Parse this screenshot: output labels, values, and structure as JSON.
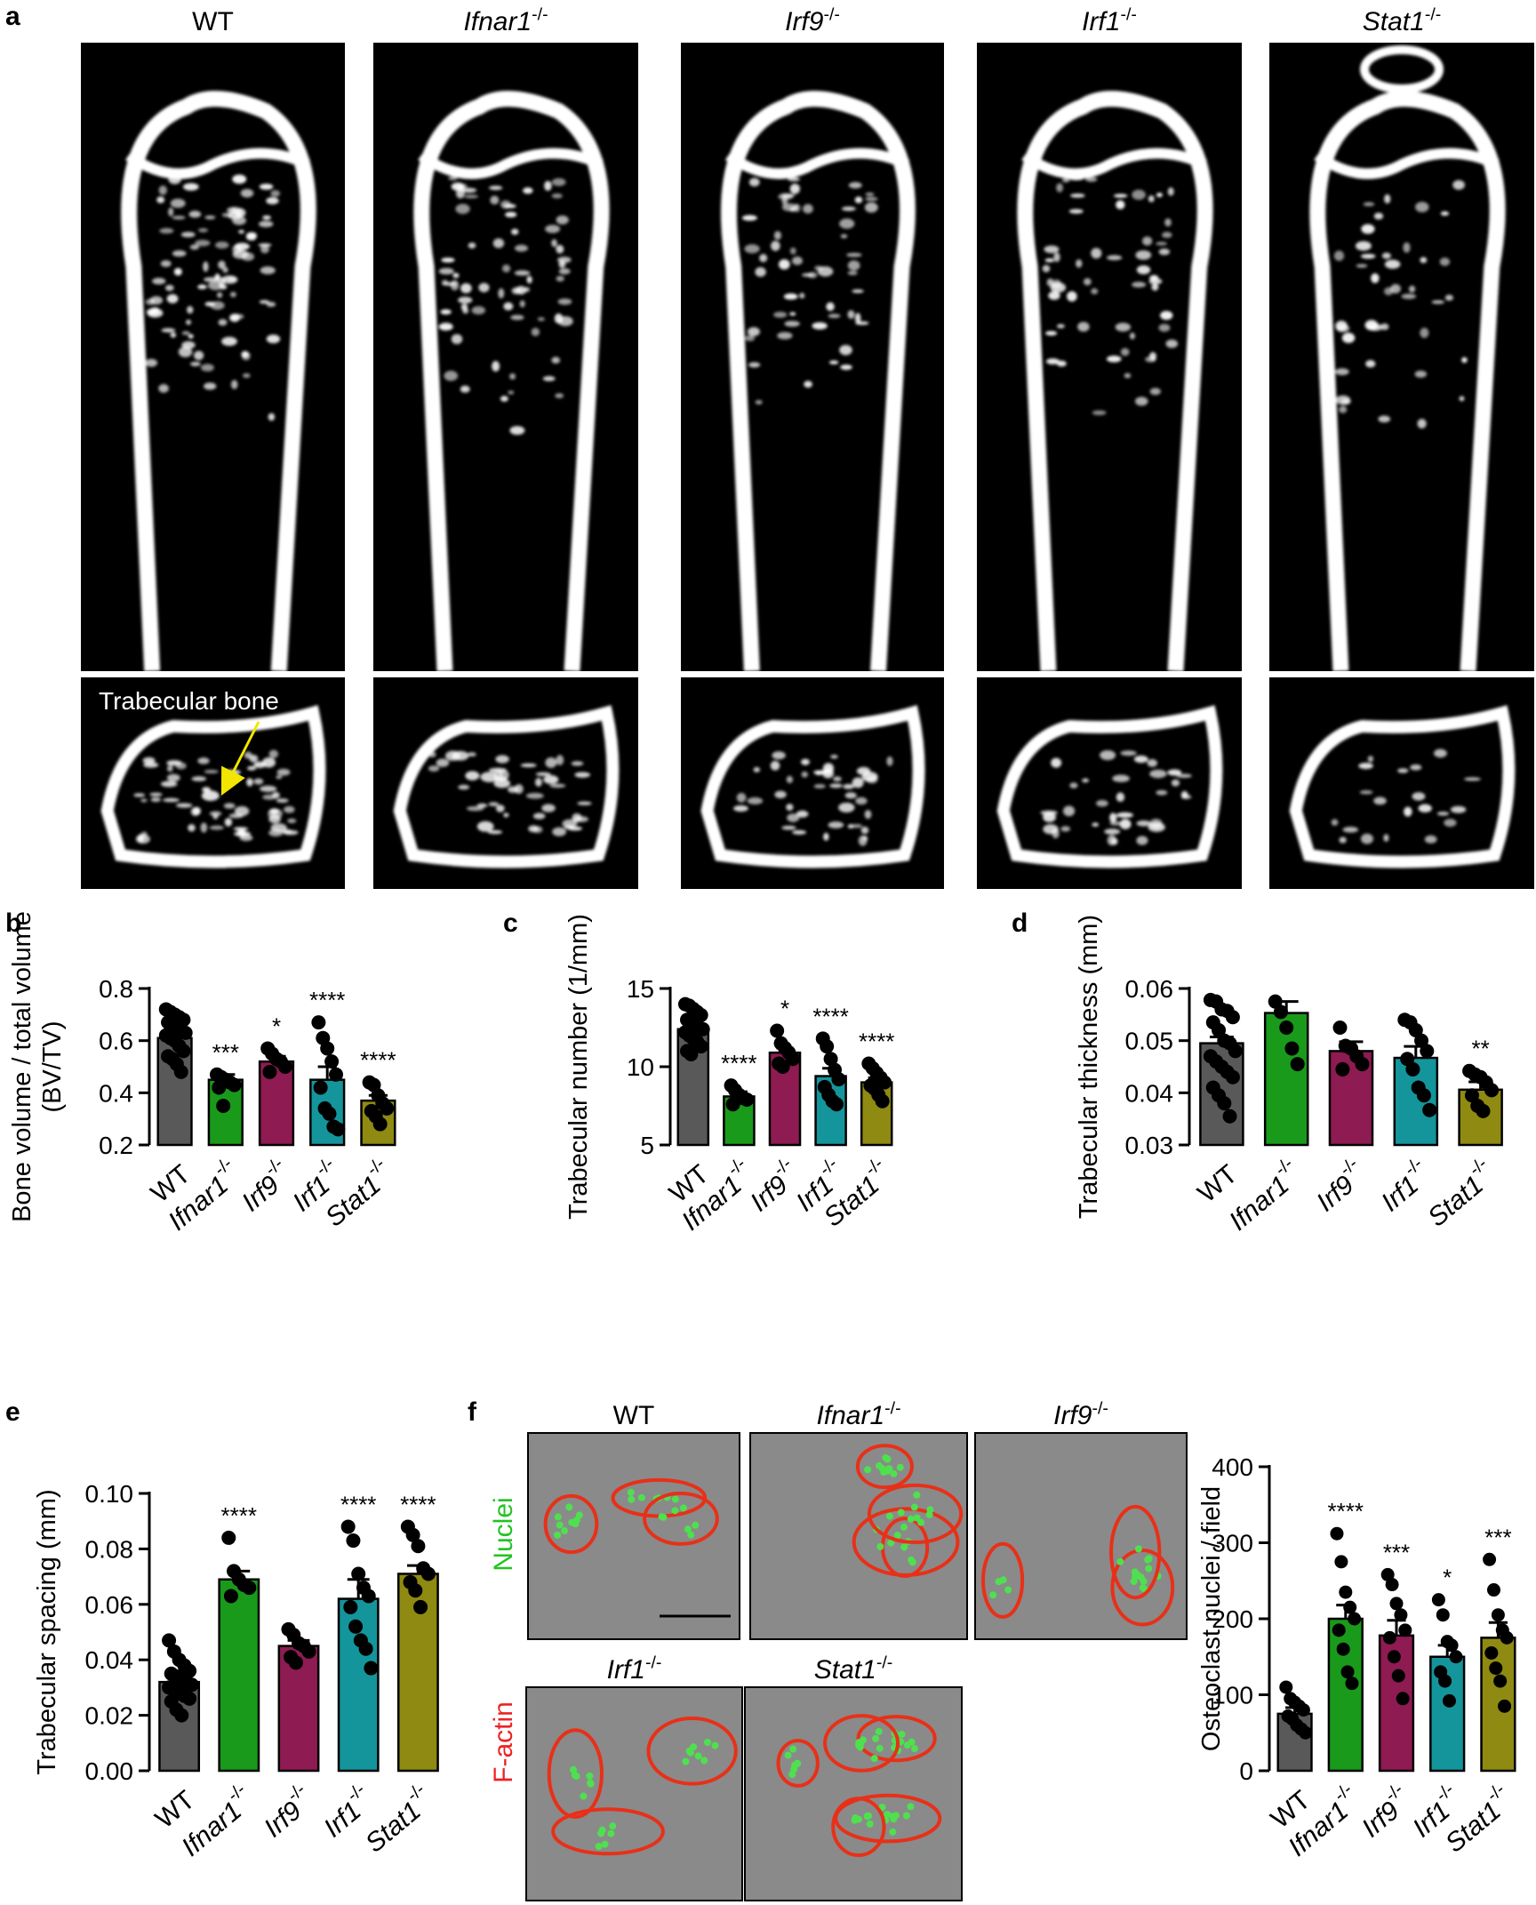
{
  "panel_a": {
    "letter": "a",
    "genotypes": [
      {
        "base": "WT",
        "sup": ""
      },
      {
        "base": "Ifnar1",
        "sup": "-/-"
      },
      {
        "base": "Irf9",
        "sup": "-/-"
      },
      {
        "base": "Irf1",
        "sup": "-/-"
      },
      {
        "base": "Stat1",
        "sup": "-/-"
      }
    ],
    "annotation": "Trabecular bone",
    "annotation_color": "#f2e600"
  },
  "panel_f": {
    "letter": "f",
    "images": [
      {
        "base": "WT",
        "sup": ""
      },
      {
        "base": "Ifnar1",
        "sup": "-/-"
      },
      {
        "base": "Irf9",
        "sup": "-/-"
      },
      {
        "base": "Irf1",
        "sup": "-/-"
      },
      {
        "base": "Stat1",
        "sup": "-/-"
      }
    ],
    "stain_labels": [
      {
        "text": "Nuclei",
        "color": "#22c322"
      },
      {
        "text": "F-actin",
        "color": "#ee2222"
      }
    ]
  },
  "colors": {
    "WT": "#595959",
    "Ifnar1": "#1a9a1a",
    "Irf9": "#8e1b52",
    "Irf1": "#14959b",
    "Stat1": "#8f8a12"
  },
  "chart_data": [
    {
      "panel": "b",
      "type": "bar",
      "categories": [
        "WT",
        "Ifnar1-/-",
        "Irf9-/-",
        "Irf1-/-",
        "Stat1-/-"
      ],
      "values": [
        0.61,
        0.45,
        0.52,
        0.45,
        0.37
      ],
      "sem": [
        0.02,
        0.02,
        0.02,
        0.05,
        0.02
      ],
      "significance": [
        "",
        "***",
        "*",
        "****",
        "****"
      ],
      "points": [
        [
          0.72,
          0.71,
          0.7,
          0.69,
          0.68,
          0.67,
          0.66,
          0.65,
          0.64,
          0.63,
          0.62,
          0.61,
          0.6,
          0.58,
          0.56,
          0.54,
          0.53,
          0.51,
          0.48
        ],
        [
          0.47,
          0.46,
          0.45,
          0.44,
          0.43,
          0.42,
          0.35
        ],
        [
          0.57,
          0.55,
          0.53,
          0.52,
          0.5,
          0.48
        ],
        [
          0.67,
          0.61,
          0.57,
          0.52,
          0.47,
          0.42,
          0.34,
          0.32,
          0.27,
          0.26
        ],
        [
          0.44,
          0.43,
          0.39,
          0.36,
          0.34,
          0.33,
          0.31,
          0.28
        ]
      ],
      "ylabel": "Bone volume / total volume (BV/TV)",
      "ylim": [
        0.2,
        0.8
      ],
      "yticks": [
        "0.2",
        "0.4",
        "0.6",
        "0.8"
      ]
    },
    {
      "panel": "c",
      "type": "bar",
      "categories": [
        "WT",
        "Ifnar1-/-",
        "Irf9-/-",
        "Irf1-/-",
        "Stat1-/-"
      ],
      "values": [
        12.4,
        8.1,
        10.9,
        9.4,
        9.0
      ],
      "sem": [
        0.3,
        0.3,
        0.3,
        0.5,
        0.3
      ],
      "significance": [
        "",
        "****",
        "*",
        "****",
        "****"
      ],
      "points": [
        [
          14.0,
          13.9,
          13.7,
          13.5,
          13.3,
          13.0,
          12.9,
          12.7,
          12.5,
          12.4,
          12.2,
          12.0,
          11.8,
          11.6,
          11.3,
          11.0,
          10.8
        ],
        [
          8.8,
          8.5,
          8.2,
          8.0,
          7.9,
          7.6
        ],
        [
          12.3,
          11.5,
          11.2,
          10.9,
          10.5,
          10.2,
          10.0
        ],
        [
          11.8,
          11.3,
          10.5,
          9.8,
          9.2,
          8.7,
          8.2,
          7.8,
          7.6
        ],
        [
          10.2,
          9.9,
          9.6,
          9.3,
          9.0,
          8.8,
          8.6,
          8.2,
          7.8
        ]
      ],
      "ylabel": "Trabecular number (1/mm)",
      "ylim": [
        5,
        15
      ],
      "yticks": [
        "5",
        "10",
        "15"
      ]
    },
    {
      "panel": "d",
      "type": "bar",
      "categories": [
        "WT",
        "Ifnar1-/-",
        "Irf9-/-",
        "Irf1-/-",
        "Stat1-/-"
      ],
      "values": [
        0.0495,
        0.0553,
        0.048,
        0.0467,
        0.0406
      ],
      "sem": [
        0.0012,
        0.0022,
        0.0018,
        0.0022,
        0.0015
      ],
      "significance": [
        "",
        "",
        "",
        "",
        "**"
      ],
      "points": [
        [
          0.0578,
          0.0575,
          0.056,
          0.0557,
          0.0545,
          0.0535,
          0.052,
          0.05,
          0.0495,
          0.048,
          0.047,
          0.046,
          0.045,
          0.044,
          0.043,
          0.041,
          0.0395,
          0.038,
          0.0355
        ],
        [
          0.0575,
          0.0555,
          0.0525,
          0.0485,
          0.0455
        ],
        [
          0.0525,
          0.049,
          0.0485,
          0.047,
          0.0455,
          0.0445
        ],
        [
          0.054,
          0.0535,
          0.052,
          0.05,
          0.048,
          0.0465,
          0.0445,
          0.041,
          0.0395,
          0.0367
        ],
        [
          0.0442,
          0.0435,
          0.043,
          0.042,
          0.0405,
          0.0395,
          0.0375,
          0.0365
        ]
      ],
      "ylabel": "Trabecular thickness (mm)",
      "ylim": [
        0.03,
        0.06
      ],
      "yticks": [
        "0.03",
        "0.04",
        "0.05",
        "0.06"
      ]
    },
    {
      "panel": "e",
      "type": "bar",
      "categories": [
        "WT",
        "Ifnar1-/-",
        "Irf9-/-",
        "Irf1-/-",
        "Stat1-/-"
      ],
      "values": [
        0.032,
        0.069,
        0.045,
        0.062,
        0.071
      ],
      "sem": [
        0.002,
        0.003,
        0.002,
        0.007,
        0.003
      ],
      "significance": [
        "",
        "****",
        "",
        "****",
        "****"
      ],
      "points": [
        [
          0.047,
          0.043,
          0.04,
          0.038,
          0.036,
          0.035,
          0.034,
          0.033,
          0.032,
          0.031,
          0.03,
          0.029,
          0.028,
          0.027,
          0.026,
          0.025,
          0.022,
          0.02
        ],
        [
          0.084,
          0.072,
          0.069,
          0.067,
          0.066,
          0.063
        ],
        [
          0.051,
          0.049,
          0.046,
          0.045,
          0.043,
          0.041,
          0.039
        ],
        [
          0.088,
          0.083,
          0.071,
          0.066,
          0.063,
          0.059,
          0.052,
          0.047,
          0.044,
          0.037
        ],
        [
          0.088,
          0.085,
          0.081,
          0.073,
          0.071,
          0.068,
          0.065,
          0.059
        ]
      ],
      "ylabel": "Trabecular spacing (mm)",
      "ylim": [
        0.0,
        0.1
      ],
      "yticks": [
        "0.00",
        "0.02",
        "0.04",
        "0.06",
        "0.08",
        "0.10"
      ]
    },
    {
      "panel": "f",
      "type": "bar",
      "categories": [
        "WT",
        "Ifnar1-/-",
        "Irf9-/-",
        "Irf1-/-",
        "Stat1-/-"
      ],
      "values": [
        75,
        200,
        178,
        150,
        175
      ],
      "sem": [
        8,
        18,
        20,
        15,
        20
      ],
      "significance": [
        "",
        "****",
        "***",
        "*",
        "***"
      ],
      "points": [
        [
          110,
          95,
          90,
          85,
          80,
          72,
          68,
          60,
          55,
          50
        ],
        [
          312,
          275,
          235,
          215,
          200,
          185,
          160,
          130,
          115
        ],
        [
          258,
          245,
          220,
          205,
          185,
          175,
          150,
          125,
          95
        ],
        [
          225,
          205,
          170,
          165,
          150,
          130,
          118,
          92
        ],
        [
          278,
          238,
          205,
          185,
          175,
          155,
          135,
          118,
          85
        ]
      ],
      "ylabel": "Osteoclast nuclei / field",
      "ylim": [
        0,
        400
      ],
      "yticks": [
        "0",
        "100",
        "200",
        "300",
        "400"
      ]
    }
  ]
}
